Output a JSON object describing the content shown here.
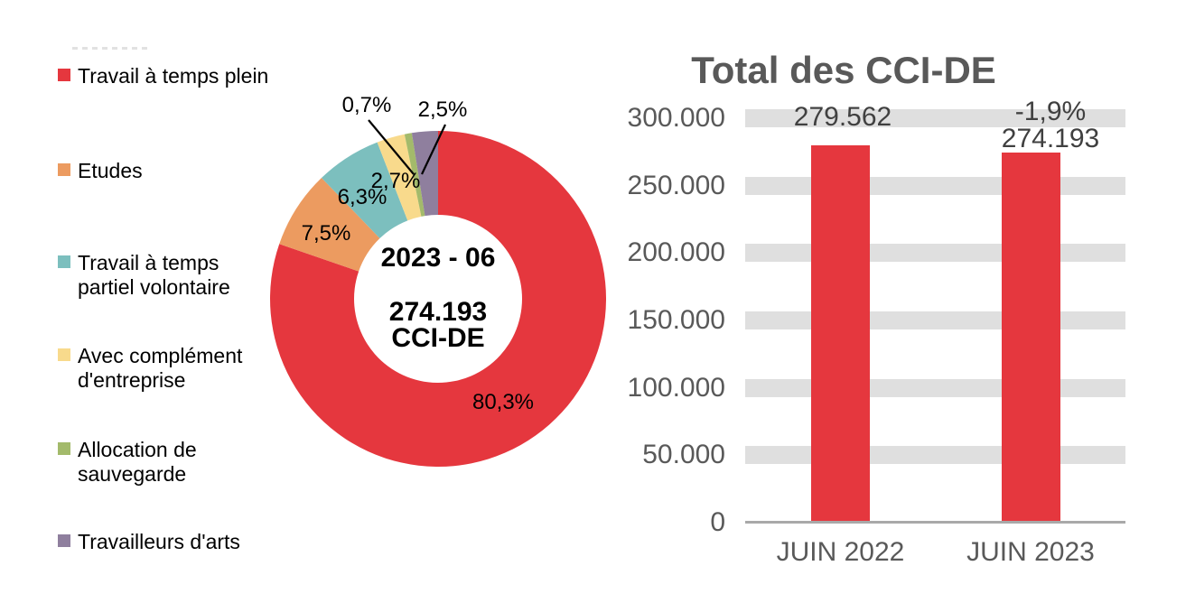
{
  "chart_data": [
    {
      "type": "pie",
      "subtype": "donut",
      "title": "",
      "center_labels": [
        "2023 - 06",
        "274.193",
        "CCI-DE"
      ],
      "donut_hole_ratio": 0.5,
      "start_angle_deg": 0,
      "direction": "clockwise",
      "slices": [
        {
          "label": "Travail à temps plein",
          "value_pct": 80.3,
          "pct_label": "80,3%",
          "color": "#E5373E"
        },
        {
          "label": "Etudes",
          "value_pct": 7.5,
          "pct_label": "7,5%",
          "color": "#EC9B60"
        },
        {
          "label": "Travail à temps partiel volontaire",
          "value_pct": 6.3,
          "pct_label": "6,3%",
          "color": "#7CBFBE"
        },
        {
          "label": "Avec complément d'entreprise",
          "value_pct": 2.7,
          "pct_label": "2,7%",
          "color": "#F8DA8C"
        },
        {
          "label": "Allocation de sauvegarde",
          "value_pct": 0.7,
          "pct_label": "0,7%",
          "color": "#A3BA6B"
        },
        {
          "label": "Travailleurs d'arts",
          "value_pct": 2.5,
          "pct_label": "2,5%",
          "color": "#8F7F9E"
        }
      ]
    },
    {
      "type": "bar",
      "title": "Total des CCI-DE",
      "categories": [
        "JUIN 2022",
        "JUIN 2023"
      ],
      "values": [
        279562,
        274193
      ],
      "bar_labels": [
        "279.562",
        "274.193"
      ],
      "delta_labels": [
        null,
        "-1,9%"
      ],
      "bar_color": "#E5373E",
      "ylim": [
        0,
        300000
      ],
      "ytick_values": [
        0,
        50000,
        100000,
        150000,
        200000,
        250000,
        300000
      ],
      "ytick_labels": [
        "0",
        "50.000",
        "100.000",
        "150.000",
        "200.000",
        "250.000",
        "300.000"
      ],
      "grid": "thick horizontal bands, light gray",
      "legend_position": "none"
    }
  ]
}
